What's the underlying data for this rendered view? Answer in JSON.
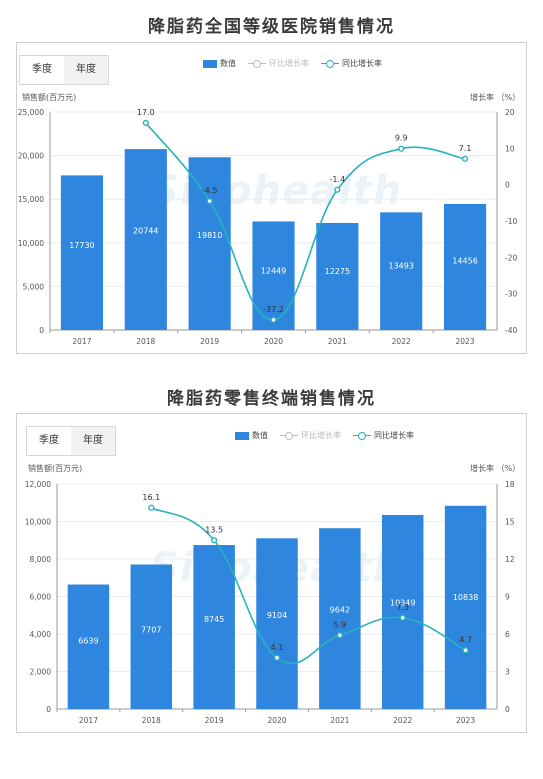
{
  "charts": [
    {
      "heading": "降脂药全国等级医院销售情况",
      "tabs": [
        "季度",
        "年度"
      ],
      "legend": [
        "数值",
        "环比增长率",
        "同比增长率"
      ],
      "left_axis_title": "销售额(百万元)",
      "right_axis_title": "增长率 （%）",
      "watermark": "Sinohealth"
    },
    {
      "heading": "降脂药零售终端销售情况",
      "tabs": [
        "季度",
        "年度"
      ],
      "legend": [
        "数值",
        "环比增长率",
        "同比增长率"
      ],
      "left_axis_title": "销售额(百万元)",
      "right_axis_title": "增长率 （%）",
      "watermark": "Sinohealth"
    }
  ],
  "chart_data": [
    {
      "type": "bar",
      "title": "降脂药全国等级医院销售情况",
      "categories": [
        "2017",
        "2018",
        "2019",
        "2020",
        "2021",
        "2022",
        "2023"
      ],
      "series": [
        {
          "name": "数值",
          "type": "bar",
          "axis": "left",
          "values": [
            17730,
            20744,
            19810,
            12449,
            12275,
            13493,
            14456
          ]
        },
        {
          "name": "同比增长率",
          "type": "line",
          "axis": "right",
          "values": [
            null,
            17.0,
            -4.5,
            -37.2,
            -1.4,
            9.9,
            7.1
          ]
        }
      ],
      "y_left": {
        "min": 0,
        "max": 25000,
        "ticks": [
          0,
          5000,
          10000,
          15000,
          20000,
          25000
        ]
      },
      "y_right": {
        "min": -40,
        "max": 20,
        "ticks": [
          -40,
          -30,
          -20,
          -10,
          0,
          10,
          20
        ]
      },
      "line_labels": [
        "",
        "17.0",
        "-4.5",
        "-37.2",
        "-1.4",
        "9.9",
        "7.1"
      ],
      "colors": {
        "bar": "#2e86de",
        "line": "#27b3bd",
        "bar_label": "#ffffff"
      }
    },
    {
      "type": "bar",
      "title": "降脂药零售终端销售情况",
      "categories": [
        "2017",
        "2018",
        "2019",
        "2020",
        "2021",
        "2022",
        "2023"
      ],
      "series": [
        {
          "name": "数值",
          "type": "bar",
          "axis": "left",
          "values": [
            6639,
            7707,
            8745,
            9104,
            9642,
            10349,
            10838
          ]
        },
        {
          "name": "同比增长率",
          "type": "line",
          "axis": "right",
          "values": [
            null,
            16.1,
            13.5,
            4.1,
            5.9,
            7.3,
            4.7
          ]
        }
      ],
      "y_left": {
        "min": 0,
        "max": 12000,
        "ticks": [
          0,
          2000,
          4000,
          6000,
          8000,
          10000,
          12000
        ]
      },
      "y_right": {
        "min": 0,
        "max": 18,
        "ticks": [
          0,
          3,
          6,
          9,
          12,
          15,
          18
        ]
      },
      "line_labels": [
        "",
        "16.1",
        "13.5",
        "4.1",
        "5.9",
        "7.3",
        "4.7"
      ],
      "colors": {
        "bar": "#2e86de",
        "line": "#27b3bd",
        "bar_label": "#ffffff"
      }
    }
  ]
}
